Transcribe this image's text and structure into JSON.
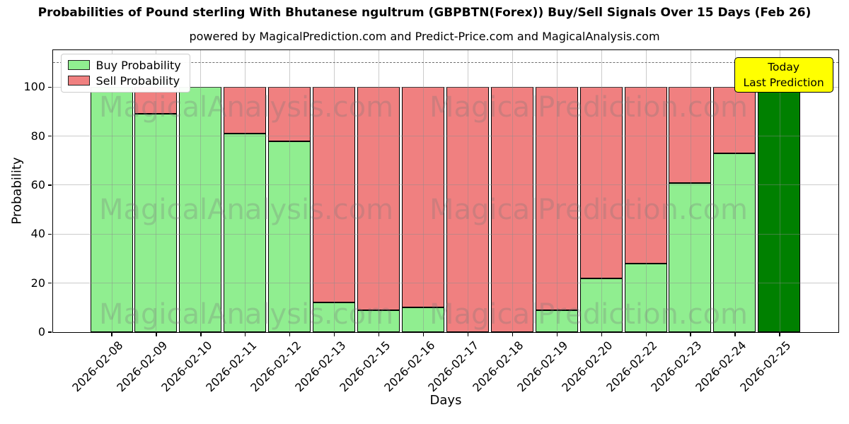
{
  "title": "Probabilities of Pound sterling With Bhutanese ngultrum (GBPBTN(Forex)) Buy/Sell Signals Over 15 Days (Feb 26)",
  "subtitle": "powered by MagicalPrediction.com and Predict-Price.com and MagicalAnalysis.com",
  "axes": {
    "x_label": "Days",
    "y_label": "Probability",
    "y_ticks": [
      0,
      20,
      40,
      60,
      80,
      100
    ],
    "y_max": 115,
    "dashed_reference_line_y": 110
  },
  "legend": {
    "items": [
      {
        "label": "Buy Probability",
        "color": "#90EE90"
      },
      {
        "label": "Sell Probability",
        "color": "#F08080"
      }
    ]
  },
  "annotation": {
    "line1": "Today",
    "line2": "Last Prediction",
    "bg_color": "#FFFF00"
  },
  "watermarks": {
    "texts": [
      "MagicalAnalysis.com",
      "MagicalPrediction.com"
    ]
  },
  "chart_data": {
    "type": "bar",
    "stacked": true,
    "title": "Probabilities of Pound sterling With Bhutanese ngultrum (GBPBTN(Forex)) Buy/Sell Signals Over 15 Days (Feb 26)",
    "xlabel": "Days",
    "ylabel": "Probability",
    "ylim": [
      0,
      115
    ],
    "yticks": [
      0,
      20,
      40,
      60,
      80,
      100
    ],
    "grid": true,
    "legend_position": "upper-left",
    "dashed_line_y": 110,
    "categories": [
      "2026-02-08",
      "2026-02-09",
      "2026-02-10",
      "2026-02-11",
      "2026-02-12",
      "2026-02-13",
      "2026-02-15",
      "2026-02-16",
      "2026-02-17",
      "2026-02-18",
      "2026-02-19",
      "2026-02-20",
      "2026-02-22",
      "2026-02-23",
      "2026-02-24",
      "2026-02-25"
    ],
    "series": [
      {
        "name": "Buy Probability",
        "color": "#90EE90",
        "values": [
          100,
          89,
          100,
          81,
          78,
          12,
          9,
          10,
          0,
          0,
          9,
          22,
          28,
          61,
          73,
          100
        ]
      },
      {
        "name": "Sell Probability",
        "color": "#F08080",
        "values": [
          0,
          11,
          0,
          19,
          22,
          88,
          91,
          90,
          100,
          100,
          91,
          78,
          72,
          39,
          27,
          0
        ]
      }
    ],
    "highlight_last_bar": {
      "index": 15,
      "color": "#008000",
      "note": "Today / Last Prediction"
    }
  }
}
